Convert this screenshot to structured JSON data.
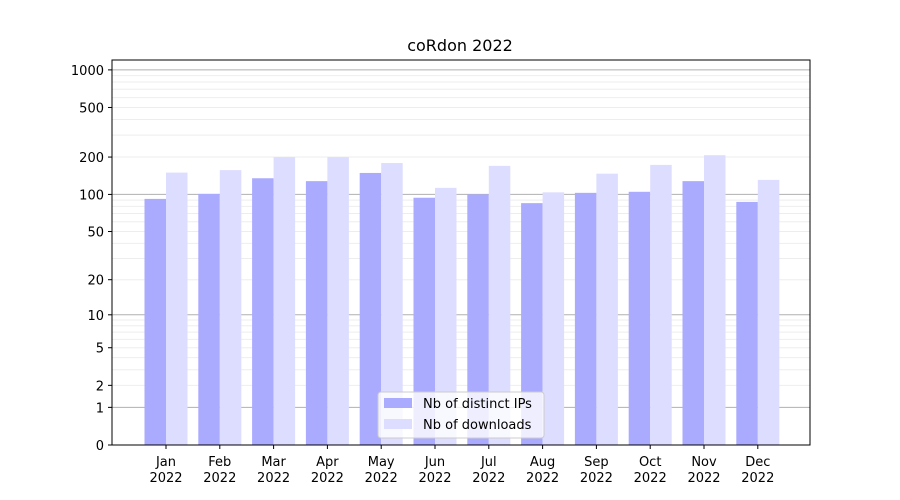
{
  "chart_data": {
    "type": "bar",
    "title": "coRdon 2022",
    "xlabel": "",
    "ylabel": "",
    "yscale": "log(1+y)",
    "ylim": [
      0,
      1200
    ],
    "yticks": [
      "0",
      "1",
      "2",
      "5",
      "10",
      "20",
      "50",
      "100",
      "200",
      "500",
      "1000"
    ],
    "grid": "horizontal",
    "legend_position": "bottom-center",
    "categories": [
      {
        "month": "Jan",
        "year": "2022"
      },
      {
        "month": "Feb",
        "year": "2022"
      },
      {
        "month": "Mar",
        "year": "2022"
      },
      {
        "month": "Apr",
        "year": "2022"
      },
      {
        "month": "May",
        "year": "2022"
      },
      {
        "month": "Jun",
        "year": "2022"
      },
      {
        "month": "Jul",
        "year": "2022"
      },
      {
        "month": "Aug",
        "year": "2022"
      },
      {
        "month": "Sep",
        "year": "2022"
      },
      {
        "month": "Oct",
        "year": "2022"
      },
      {
        "month": "Nov",
        "year": "2022"
      },
      {
        "month": "Dec",
        "year": "2022"
      }
    ],
    "series": [
      {
        "name": "Nb of distinct IPs",
        "color": "#aaaaff",
        "values": [
          92,
          101,
          135,
          128,
          149,
          94,
          100,
          85,
          103,
          105,
          128,
          87
        ]
      },
      {
        "name": "Nb of downloads",
        "color": "#ddddff",
        "values": [
          150,
          157,
          200,
          200,
          179,
          113,
          170,
          104,
          147,
          173,
          207,
          131
        ]
      }
    ]
  }
}
